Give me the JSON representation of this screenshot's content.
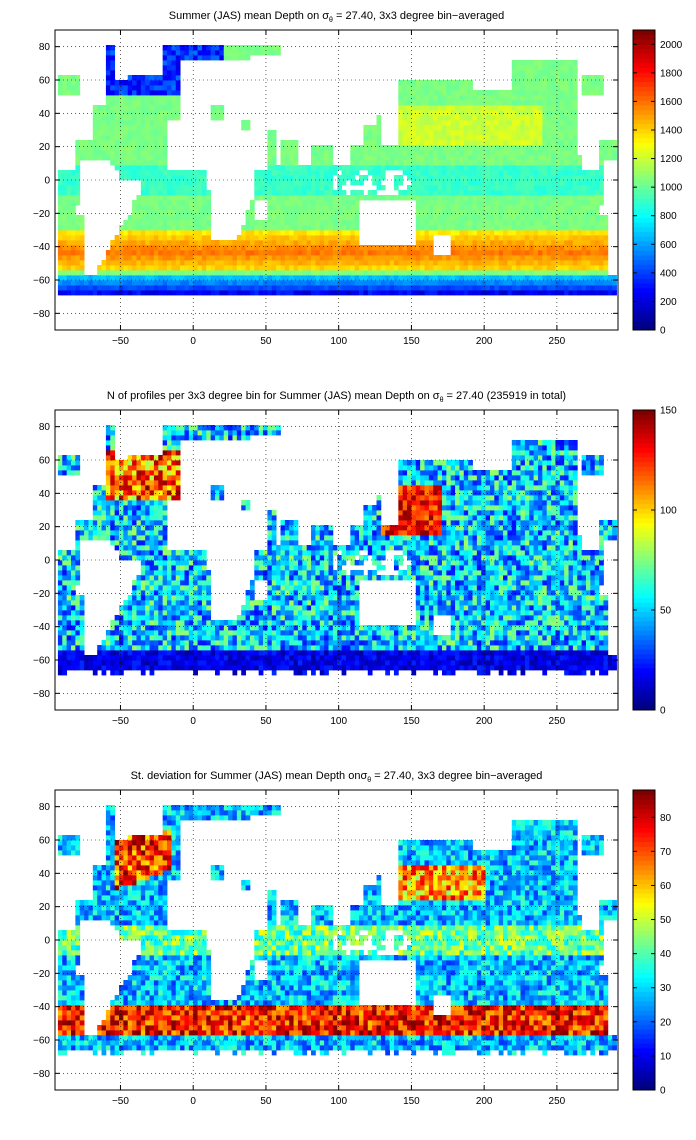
{
  "chart_data": [
    {
      "type": "heatmap",
      "title_prefix": "Summer (JAS) mean Depth on ",
      "title_sigma": "σ",
      "title_sub": "θ",
      "title_suffix": " = 27.40, 3x3 degree bin−averaged",
      "x_ticks": [
        "−50",
        "0",
        "50",
        "100",
        "150",
        "200",
        "250"
      ],
      "x_tick_values": [
        -50,
        0,
        50,
        100,
        150,
        200,
        250
      ],
      "y_ticks": [
        "80",
        "60",
        "40",
        "20",
        "0",
        "−20",
        "−40",
        "−60",
        "−80"
      ],
      "y_tick_values": [
        80,
        60,
        40,
        20,
        0,
        -20,
        -40,
        -60,
        -80
      ],
      "xlim": [
        -95,
        292
      ],
      "ylim": [
        -90,
        90
      ],
      "grid": true,
      "colorbar": {
        "ticks": [
          "2000",
          "1800",
          "1600",
          "1400",
          "1200",
          "1000",
          "800",
          "600",
          "400",
          "200",
          "0"
        ],
        "tick_values": [
          2000,
          1800,
          1600,
          1400,
          1200,
          1000,
          800,
          600,
          400,
          200,
          0
        ],
        "range": [
          0,
          2100
        ]
      },
      "mode": "depth"
    },
    {
      "type": "heatmap",
      "title_prefix": "N of profiles per 3x3 degree bin for Summer (JAS) mean Depth on ",
      "title_sigma": "σ",
      "title_sub": "θ",
      "title_suffix": " = 27.40 (235919 in total)",
      "x_ticks": [
        "−50",
        "0",
        "50",
        "100",
        "150",
        "200",
        "250"
      ],
      "x_tick_values": [
        -50,
        0,
        50,
        100,
        150,
        200,
        250
      ],
      "y_ticks": [
        "80",
        "60",
        "40",
        "20",
        "0",
        "−20",
        "−40",
        "−60",
        "−80"
      ],
      "y_tick_values": [
        80,
        60,
        40,
        20,
        0,
        -20,
        -40,
        -60,
        -80
      ],
      "xlim": [
        -95,
        292
      ],
      "ylim": [
        -90,
        90
      ],
      "grid": true,
      "colorbar": {
        "ticks": [
          "150",
          "100",
          "50",
          "0"
        ],
        "tick_values": [
          150,
          100,
          50,
          0
        ],
        "range": [
          0,
          150
        ]
      },
      "mode": "count"
    },
    {
      "type": "heatmap",
      "title_prefix": "St. deviation for Summer (JAS) mean Depth on",
      "title_sigma": "σ",
      "title_sub": "θ",
      "title_suffix": " = 27.40, 3x3 degree bin−averaged",
      "x_ticks": [
        "−50",
        "0",
        "50",
        "100",
        "150",
        "200",
        "250"
      ],
      "x_tick_values": [
        -50,
        0,
        50,
        100,
        150,
        200,
        250
      ],
      "y_ticks": [
        "80",
        "60",
        "40",
        "20",
        "0",
        "−20",
        "−40",
        "−60",
        "−80"
      ],
      "y_tick_values": [
        80,
        60,
        40,
        20,
        0,
        -20,
        -40,
        -60,
        -80
      ],
      "xlim": [
        -95,
        292
      ],
      "ylim": [
        -90,
        90
      ],
      "grid": true,
      "colorbar": {
        "ticks": [
          "80",
          "70",
          "60",
          "50",
          "40",
          "30",
          "20",
          "10",
          "0"
        ],
        "tick_values": [
          80,
          70,
          60,
          50,
          40,
          30,
          20,
          10,
          0
        ],
        "range": [
          0,
          88
        ]
      },
      "mode": "std"
    }
  ]
}
